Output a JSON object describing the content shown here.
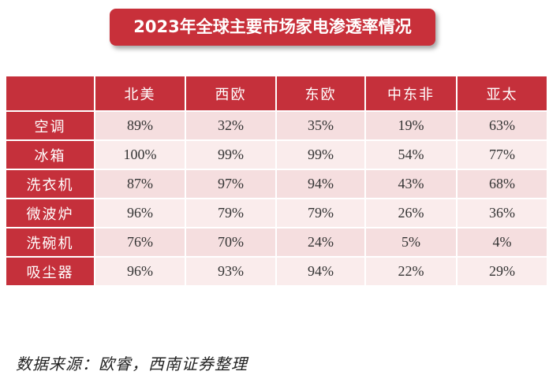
{
  "title": "2023年全球主要市场家电渗透率情况",
  "table": {
    "corner": "",
    "columns": [
      "北美",
      "西欧",
      "东欧",
      "中东非",
      "亚太"
    ],
    "rows": [
      {
        "label": "空调",
        "values": [
          "89%",
          "32%",
          "35%",
          "19%",
          "63%"
        ]
      },
      {
        "label": "冰箱",
        "values": [
          "100%",
          "99%",
          "99%",
          "54%",
          "77%"
        ]
      },
      {
        "label": "洗衣机",
        "values": [
          "87%",
          "97%",
          "94%",
          "43%",
          "68%"
        ]
      },
      {
        "label": "微波炉",
        "values": [
          "96%",
          "79%",
          "79%",
          "26%",
          "36%"
        ]
      },
      {
        "label": "洗碗机",
        "values": [
          "76%",
          "70%",
          "24%",
          "5%",
          "4%"
        ]
      },
      {
        "label": "吸尘器",
        "values": [
          "96%",
          "93%",
          "94%",
          "22%",
          "29%"
        ]
      }
    ]
  },
  "source": "数据来源：欧睿，西南证券整理",
  "colors": {
    "header_red": "#c5303b",
    "row_light": "#f5dedf",
    "row_lighter": "#faecec"
  }
}
